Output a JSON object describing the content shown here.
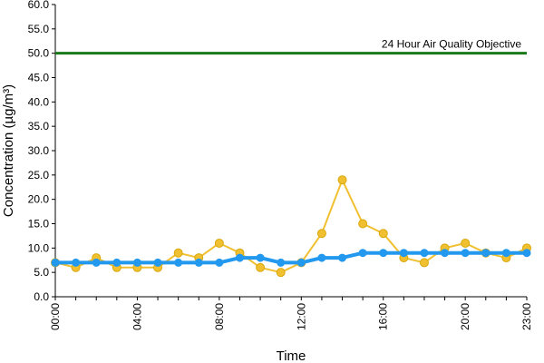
{
  "chart_data": {
    "type": "line",
    "title": "",
    "xlabel": "Time",
    "ylabel": "Concentration (µg/m³)",
    "x": [
      "00:00",
      "01:00",
      "02:00",
      "03:00",
      "04:00",
      "05:00",
      "06:00",
      "07:00",
      "08:00",
      "09:00",
      "10:00",
      "11:00",
      "12:00",
      "13:00",
      "14:00",
      "15:00",
      "16:00",
      "17:00",
      "18:00",
      "19:00",
      "20:00",
      "21:00",
      "22:00",
      "23:00"
    ],
    "x_tick_labels": [
      "00:00",
      "04:00",
      "08:00",
      "12:00",
      "16:00",
      "20:00",
      "23:00"
    ],
    "y_tick_labels": [
      "0.0",
      "5.0",
      "10.0",
      "15.0",
      "20.0",
      "25.0",
      "30.0",
      "35.0",
      "40.0",
      "45.0",
      "50.0",
      "55.0",
      "60.0"
    ],
    "ylim": [
      0,
      60
    ],
    "grid": false,
    "series": [
      {
        "values": [
          7,
          6,
          8,
          6,
          6,
          6,
          9,
          8,
          11,
          9,
          6,
          5,
          7,
          13,
          24,
          15,
          13,
          8,
          7,
          10,
          11,
          9,
          8,
          10
        ],
        "color": "#f0c030",
        "marker_color": "#f0c030"
      },
      {
        "values": [
          7,
          7,
          7,
          7,
          7,
          7,
          7,
          7,
          7,
          8,
          8,
          7,
          7,
          8,
          8,
          9,
          9,
          9,
          9,
          9,
          9,
          9,
          9,
          9
        ],
        "color": "#2299ee",
        "marker_color": "#2299ee"
      }
    ],
    "reference_line": {
      "value": 50,
      "label": "24 Hour Air Quality Objective",
      "color": "#1a7a1a"
    },
    "axis_color": "#000000"
  }
}
